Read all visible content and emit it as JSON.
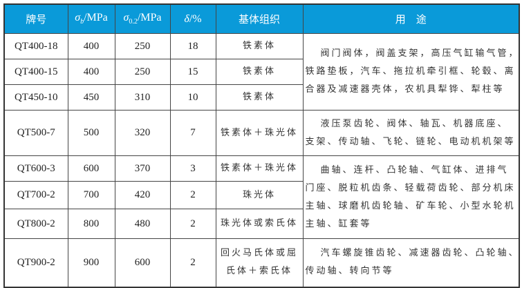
{
  "header": {
    "grade": "牌号",
    "sigma_b_symbol": "σ",
    "sigma_b_sub": "b",
    "sigma_b_unit": "/MPa",
    "sigma_02_symbol": "σ",
    "sigma_02_sub": "0.2",
    "sigma_02_unit": "/MPa",
    "delta_symbol": "δ",
    "delta_unit": "/%",
    "matrix": "基体组织",
    "usage": "用　途"
  },
  "header_color": "#0a9ad9",
  "rows": [
    {
      "grade": "QT400-18",
      "sigma_b": "400",
      "sigma_02": "250",
      "delta": "18",
      "matrix": [
        "铁素体"
      ]
    },
    {
      "grade": "QT400-15",
      "sigma_b": "400",
      "sigma_02": "250",
      "delta": "15",
      "matrix": [
        "铁素体"
      ]
    },
    {
      "grade": "QT450-10",
      "sigma_b": "450",
      "sigma_02": "310",
      "delta": "10",
      "matrix": [
        "铁素体"
      ]
    },
    {
      "grade": "QT500-7",
      "sigma_b": "500",
      "sigma_02": "320",
      "delta": "7",
      "matrix": [
        "铁素体＋珠光体"
      ]
    },
    {
      "grade": "QT600-3",
      "sigma_b": "600",
      "sigma_02": "370",
      "delta": "3",
      "matrix": [
        "铁素体＋珠光体"
      ]
    },
    {
      "grade": "QT700-2",
      "sigma_b": "700",
      "sigma_02": "420",
      "delta": "2",
      "matrix": [
        "珠光体"
      ]
    },
    {
      "grade": "QT800-2",
      "sigma_b": "800",
      "sigma_02": "480",
      "delta": "2",
      "matrix": [
        "珠光体或索氏体"
      ]
    },
    {
      "grade": "QT900-2",
      "sigma_b": "900",
      "sigma_02": "600",
      "delta": "2",
      "matrix": [
        "回火马氏体或屈",
        "氏体＋索氏体"
      ]
    }
  ],
  "usage": [
    [
      "阀门阀体，阀盖支架，高压气缸输气管，",
      "铁路垫板，汽车、拖拉机牵引框、轮毂、离",
      "合器及减速器壳体，农机具犁铧、犁柱等"
    ],
    [
      "液压泵齿轮、阀体、轴瓦、机器底座、",
      "支架、传动轴、飞轮、链轮、电动机机架等"
    ],
    [
      "曲轴、连杆、凸轮轴、气缸体、进排气",
      "门座、脱粒机齿条、轻载荷齿轮、部分机床",
      "主轴、球磨机齿轮轴、矿车轮、小型水轮机",
      "主轴、缸套等"
    ],
    [
      "汽车螺旋锥齿轮、减速器齿轮、凸轮轴、",
      "传动轴、转向节等"
    ]
  ]
}
